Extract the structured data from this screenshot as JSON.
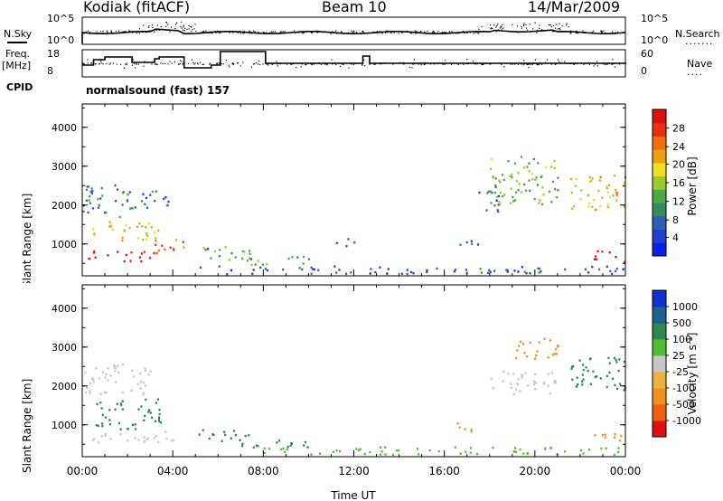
{
  "header": {
    "radar": "Kodiak (fitACF)",
    "beam": "Beam 10",
    "date": "14/Mar/2009"
  },
  "top_panels": {
    "nsky_label": "N.Sky",
    "nsearch_label": "N.Search",
    "nsky_ticks": [
      "10^5",
      "10^0"
    ],
    "nsearch_ticks": [
      "10^5",
      "10^0"
    ],
    "freq_label": "Freq.",
    "freq_unit": "[MHz]",
    "freq_ticks": [
      "18",
      "8"
    ],
    "nave_label": "Nave",
    "nave_ticks": [
      "60",
      "0"
    ],
    "cpid_label": "CPID",
    "cpid_value": "normalsound (fast) 157"
  },
  "colors": {
    "power": [
      "#0a1ef0",
      "#1e40d0",
      "#2b60b0",
      "#3a8a60",
      "#4aa848",
      "#9acb2c",
      "#f0e020",
      "#f0a010",
      "#f07010",
      "#e83010",
      "#e01010"
    ],
    "velocity": [
      "#1030d0",
      "#206090",
      "#308850",
      "#50c030",
      "#c8c8c8",
      "#f0b040",
      "#f09020",
      "#f06010",
      "#e01010"
    ]
  },
  "chart_data": [
    {
      "type": "heatmap",
      "title": "",
      "xlabel": "",
      "ylabel": "Slant Range [km]",
      "x_ticks": [
        "00:00",
        "04:00",
        "08:00",
        "12:00",
        "16:00",
        "20:00",
        "00:00"
      ],
      "y_ticks": [
        "1000",
        "2000",
        "3000",
        "4000"
      ],
      "xlim": [
        0,
        24
      ],
      "ylim": [
        180,
        4600
      ],
      "colorbar_label": "Power [dB]",
      "colorbar_ticks": [
        "4",
        "8",
        "12",
        "16",
        "20",
        "24",
        "28"
      ],
      "colorbar_range": [
        0,
        32
      ],
      "regions": [
        {
          "t": [
            0.0,
            3.3
          ],
          "r": [
            550,
            850
          ],
          "value": 30
        },
        {
          "t": [
            3.2,
            4.5
          ],
          "r": [
            700,
            1200
          ],
          "value": 26
        },
        {
          "t": [
            0.4,
            3.5
          ],
          "r": [
            1100,
            1600
          ],
          "value": 18
        },
        {
          "t": [
            0.0,
            2.0
          ],
          "r": [
            1700,
            2600
          ],
          "value": 10
        },
        {
          "t": [
            2.0,
            4.0
          ],
          "r": [
            1900,
            2400
          ],
          "value": 8
        },
        {
          "t": [
            5.0,
            7.5
          ],
          "r": [
            600,
            1000
          ],
          "value": 12
        },
        {
          "t": [
            7.0,
            10.0
          ],
          "r": [
            450,
            700
          ],
          "value": 14
        },
        {
          "t": [
            4.5,
            24.0
          ],
          "r": [
            250,
            450
          ],
          "value": 6
        },
        {
          "t": [
            11.0,
            12.0
          ],
          "r": [
            950,
            1200
          ],
          "value": 8
        },
        {
          "t": [
            16.5,
            17.6
          ],
          "r": [
            800,
            1100
          ],
          "value": 8
        },
        {
          "t": [
            17.5,
            18.5
          ],
          "r": [
            1800,
            2400
          ],
          "value": 6
        },
        {
          "t": [
            18.0,
            21.0
          ],
          "r": [
            2000,
            3300
          ],
          "value": 14
        },
        {
          "t": [
            21.5,
            24.0
          ],
          "r": [
            1900,
            2800
          ],
          "value": 20
        },
        {
          "t": [
            22.5,
            24.0
          ],
          "r": [
            550,
            850
          ],
          "value": 30
        }
      ]
    },
    {
      "type": "heatmap",
      "title": "",
      "xlabel": "Time UT",
      "ylabel": "Slant Range [km]",
      "x_ticks": [
        "00:00",
        "04:00",
        "08:00",
        "12:00",
        "16:00",
        "20:00",
        "00:00"
      ],
      "y_ticks": [
        "1000",
        "2000",
        "3000",
        "4000"
      ],
      "xlim": [
        0,
        24
      ],
      "ylim": [
        180,
        4600
      ],
      "colorbar_label": "Velocity [m s^-1]",
      "colorbar_ticks": [
        "1000",
        "500",
        "100",
        "25",
        "-25",
        "-100",
        "-500",
        "-1000"
      ],
      "regions": [
        {
          "t": [
            0.0,
            4.0
          ],
          "r": [
            550,
            850
          ],
          "value": 0
        },
        {
          "t": [
            0.5,
            3.5
          ],
          "r": [
            900,
            1700
          ],
          "value": 150
        },
        {
          "t": [
            0.0,
            3.0
          ],
          "r": [
            1800,
            2600
          ],
          "value": 0
        },
        {
          "t": [
            5.0,
            7.5
          ],
          "r": [
            600,
            900
          ],
          "value": 150
        },
        {
          "t": [
            7.0,
            10.0
          ],
          "r": [
            400,
            650
          ],
          "value": 300
        },
        {
          "t": [
            8.0,
            24.0
          ],
          "r": [
            250,
            450
          ],
          "value": 80
        },
        {
          "t": [
            16.5,
            17.5
          ],
          "r": [
            800,
            1100
          ],
          "value": -300
        },
        {
          "t": [
            18.0,
            21.0
          ],
          "r": [
            1800,
            2400
          ],
          "value": 0
        },
        {
          "t": [
            19.0,
            21.0
          ],
          "r": [
            2700,
            3300
          ],
          "value": -400
        },
        {
          "t": [
            21.5,
            24.0
          ],
          "r": [
            1900,
            2800
          ],
          "value": 150
        },
        {
          "t": [
            22.5,
            24.0
          ],
          "r": [
            550,
            850
          ],
          "value": -200
        }
      ]
    }
  ]
}
